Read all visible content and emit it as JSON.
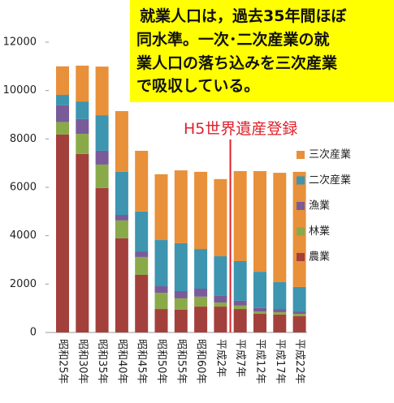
{
  "chart_data": {
    "type": "stacked_bar",
    "annotation": [
      "就業人口は，過去35年間ほぼ",
      "同水準。一次･二次産業の就",
      "業人口の落ち込みを三次産業",
      "で吸収している。"
    ],
    "event_label": "H5世界遺産登録",
    "categories": [
      "昭和25年",
      "昭和30年",
      "昭和35年",
      "昭和40年",
      "昭和45年",
      "昭和50年",
      "昭和55年",
      "昭和60年",
      "平成2年",
      "平成7年",
      "平成12年",
      "平成17年",
      "平成22年"
    ],
    "series": [
      {
        "name": "農業",
        "color": "#a4403c",
        "values": [
          8180,
          7380,
          5970,
          3890,
          2380,
          970,
          940,
          1070,
          1070,
          970,
          770,
          740,
          670
        ]
      },
      {
        "name": "林業",
        "color": "#8aaa4a",
        "values": [
          520,
          830,
          970,
          740,
          740,
          670,
          470,
          410,
          170,
          140,
          100,
          100,
          100
        ]
      },
      {
        "name": "漁業",
        "color": "#7a5b9a",
        "values": [
          690,
          610,
          570,
          230,
          230,
          270,
          300,
          330,
          270,
          200,
          140,
          130,
          100
        ]
      },
      {
        "name": "二次産業",
        "color": "#3d95b0",
        "values": [
          430,
          730,
          1470,
          1780,
          1650,
          1910,
          1980,
          1640,
          1640,
          1640,
          1500,
          1110,
          1010
        ]
      },
      {
        "name": "三次産業",
        "color": "#e8903a",
        "values": [
          1180,
          1480,
          2010,
          2510,
          2510,
          2720,
          3010,
          3190,
          3190,
          3720,
          4160,
          4520,
          4760
        ]
      }
    ],
    "ylim": [
      0,
      12000
    ],
    "yticks": [
      0,
      2000,
      4000,
      6000,
      8000,
      10000,
      12000
    ],
    "legend": "right"
  }
}
